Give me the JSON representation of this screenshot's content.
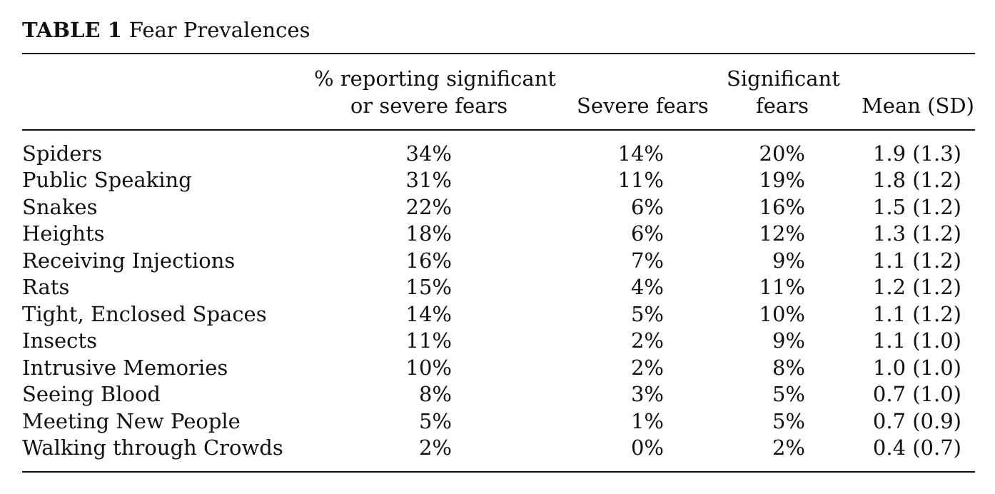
{
  "table": {
    "label": "TABLE 1",
    "title": "Fear Prevalences",
    "headers": {
      "col1_line1": "% reporting significant",
      "col1_line2": "or severe fears",
      "col2_line1": "",
      "col2_line2": "Severe fears",
      "col3_line1": "Significant",
      "col3_line2": "fears",
      "col4_line1": "",
      "col4_line2": "Mean (SD)"
    },
    "rows": [
      {
        "fear": "Spiders",
        "pct_sig_or_severe": "34%",
        "severe": "14%",
        "significant": "20%",
        "mean_sd": "1.9 (1.3)"
      },
      {
        "fear": "Public Speaking",
        "pct_sig_or_severe": "31%",
        "severe": "11%",
        "significant": "19%",
        "mean_sd": "1.8 (1.2)"
      },
      {
        "fear": "Snakes",
        "pct_sig_or_severe": "22%",
        "severe": "6%",
        "significant": "16%",
        "mean_sd": "1.5 (1.2)"
      },
      {
        "fear": "Heights",
        "pct_sig_or_severe": "18%",
        "severe": "6%",
        "significant": "12%",
        "mean_sd": "1.3 (1.2)"
      },
      {
        "fear": "Receiving Injections",
        "pct_sig_or_severe": "16%",
        "severe": "7%",
        "significant": "9%",
        "mean_sd": "1.1 (1.2)"
      },
      {
        "fear": "Rats",
        "pct_sig_or_severe": "15%",
        "severe": "4%",
        "significant": "11%",
        "mean_sd": "1.2 (1.2)"
      },
      {
        "fear": "Tight, Enclosed Spaces",
        "pct_sig_or_severe": "14%",
        "severe": "5%",
        "significant": "10%",
        "mean_sd": "1.1 (1.2)"
      },
      {
        "fear": "Insects",
        "pct_sig_or_severe": "11%",
        "severe": "2%",
        "significant": "9%",
        "mean_sd": "1.1 (1.0)"
      },
      {
        "fear": "Intrusive Memories",
        "pct_sig_or_severe": "10%",
        "severe": "2%",
        "significant": "8%",
        "mean_sd": "1.0 (1.0)"
      },
      {
        "fear": "Seeing Blood",
        "pct_sig_or_severe": "8%",
        "severe": "3%",
        "significant": "5%",
        "mean_sd": "0.7 (1.0)"
      },
      {
        "fear": "Meeting New People",
        "pct_sig_or_severe": "5%",
        "severe": "1%",
        "significant": "5%",
        "mean_sd": "0.7 (0.9)"
      },
      {
        "fear": "Walking through Crowds",
        "pct_sig_or_severe": "2%",
        "severe": "0%",
        "significant": "2%",
        "mean_sd": "0.4 (0.7)"
      }
    ]
  }
}
